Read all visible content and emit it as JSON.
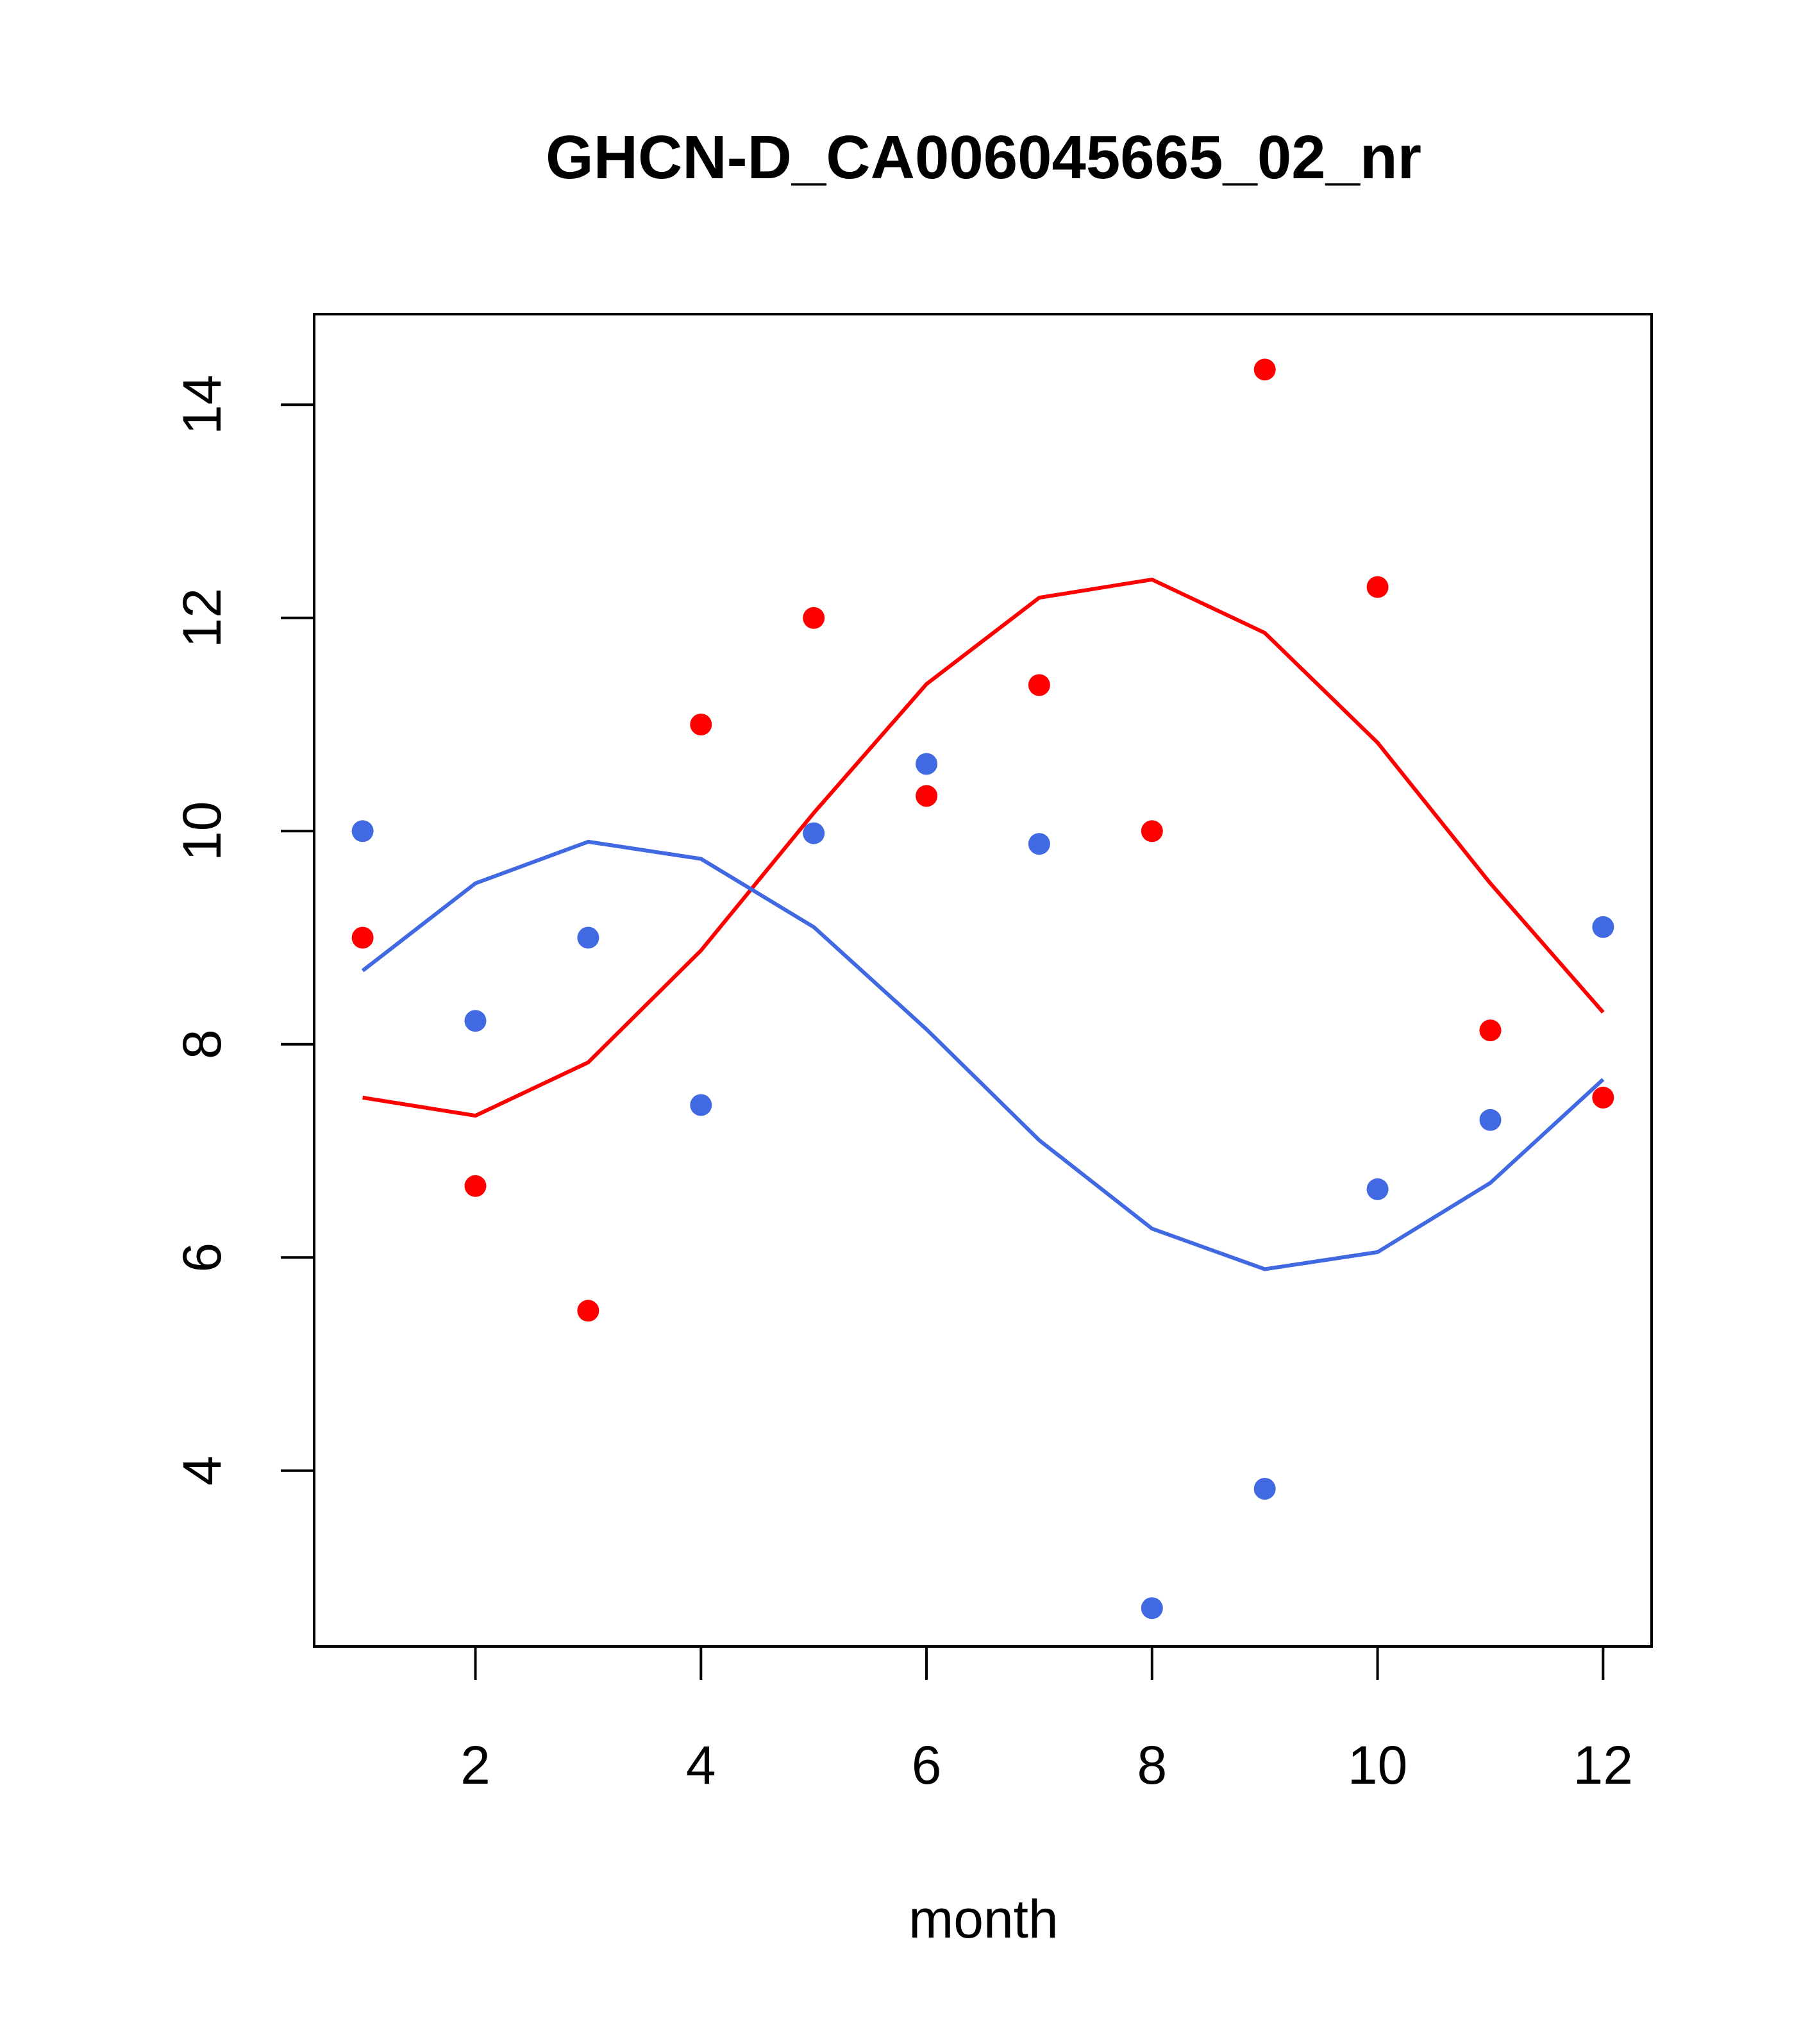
{
  "chart_data": {
    "type": "scatter",
    "title": "GHCN-D_CA006045665_02_nr",
    "xlabel": "month",
    "ylabel": "",
    "xlim": [
      0.57,
      12.43
    ],
    "ylim": [
      2.35,
      14.85
    ],
    "xticks": [
      2,
      4,
      6,
      8,
      10,
      12
    ],
    "yticks": [
      4,
      6,
      8,
      10,
      12,
      14
    ],
    "xtick_labels": [
      "2",
      "4",
      "6",
      "8",
      "10",
      "12"
    ],
    "ytick_labels": [
      "4",
      "6",
      "8",
      "10",
      "12",
      "14"
    ],
    "grid": false,
    "series": [
      {
        "color": "#ff0000",
        "points_x": [
          1,
          2,
          3,
          4,
          5,
          6,
          7,
          8,
          9,
          10,
          11,
          12
        ],
        "points_y": [
          9.0,
          6.67,
          5.5,
          11.0,
          12.0,
          10.33,
          11.37,
          10.0,
          14.33,
          12.29,
          8.13,
          7.5
        ],
        "line_x": [
          1,
          2,
          3,
          4,
          5,
          6,
          7,
          8,
          9,
          10,
          11,
          12
        ],
        "line_y": [
          7.5,
          7.33,
          7.83,
          8.88,
          10.17,
          11.38,
          12.19,
          12.36,
          11.86,
          10.83,
          9.51,
          8.3
        ]
      },
      {
        "color": "#4169e1",
        "points_x": [
          1,
          2,
          3,
          4,
          5,
          6,
          7,
          8,
          9,
          10,
          11,
          12
        ],
        "points_y": [
          10.0,
          8.22,
          9.0,
          7.43,
          9.98,
          10.63,
          9.88,
          2.71,
          3.83,
          6.64,
          7.29,
          9.1
        ],
        "line_x": [
          1,
          2,
          3,
          4,
          5,
          6,
          7,
          8,
          9,
          10,
          11,
          12
        ],
        "line_y": [
          8.69,
          9.51,
          9.9,
          9.74,
          9.1,
          8.14,
          7.1,
          6.27,
          5.89,
          6.05,
          6.7,
          7.67
        ]
      }
    ]
  }
}
